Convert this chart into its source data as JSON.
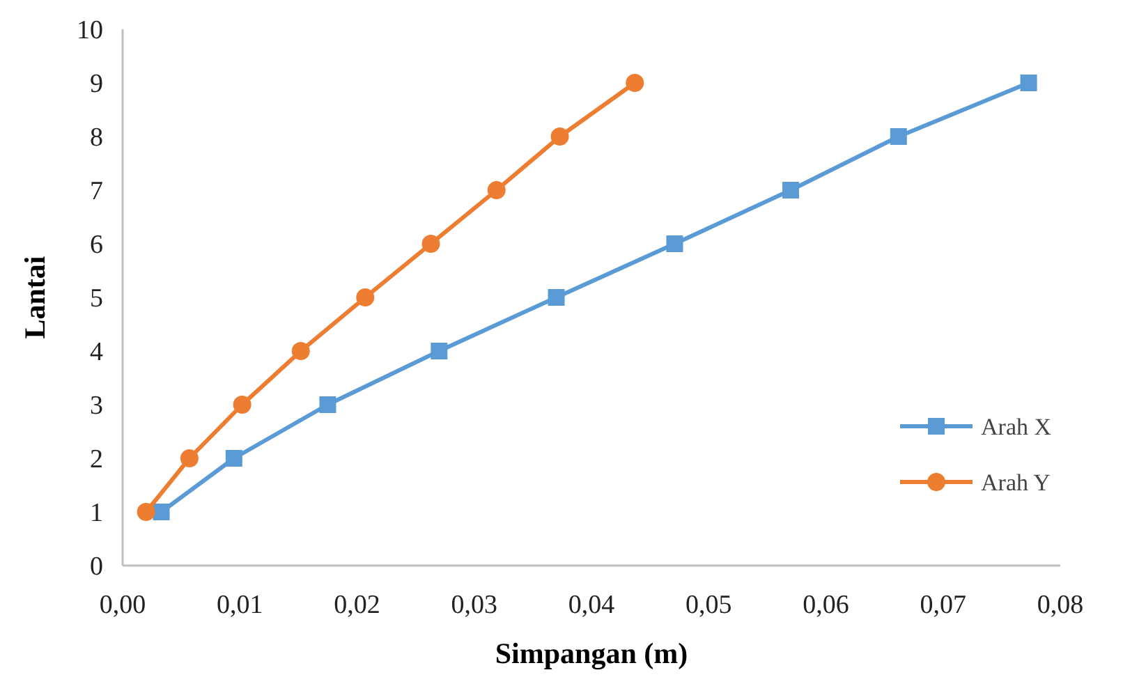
{
  "chart_data": {
    "type": "line",
    "xlabel": "Simpangan (m)",
    "ylabel": "Lantai",
    "xlim": [
      0,
      0.08
    ],
    "xticks": [
      {
        "value": 0,
        "label": "0,00"
      },
      {
        "value": 0.01,
        "label": "0,01"
      },
      {
        "value": 0.02,
        "label": "0,02"
      },
      {
        "value": 0.03,
        "label": "0,03"
      },
      {
        "value": 0.04,
        "label": "0,04"
      },
      {
        "value": 0.05,
        "label": "0,05"
      },
      {
        "value": 0.06,
        "label": "0,06"
      },
      {
        "value": 0.07,
        "label": "0,07"
      },
      {
        "value": 0.08,
        "label": "0,08"
      }
    ],
    "ylim": [
      0,
      10
    ],
    "yticks": [
      0,
      1,
      2,
      3,
      4,
      5,
      6,
      7,
      8,
      9,
      10
    ],
    "grid": false,
    "legend": "bottom right",
    "series": [
      {
        "name": "Arah X",
        "color": "#5b9bd5",
        "marker": "square",
        "x": [
          0.0033,
          0.0095,
          0.0175,
          0.027,
          0.037,
          0.0471,
          0.057,
          0.0662,
          0.0773
        ],
        "values": [
          1,
          2,
          3,
          4,
          5,
          6,
          7,
          8,
          9
        ]
      },
      {
        "name": "Arah Y",
        "color": "#ed7d31",
        "marker": "circle",
        "x": [
          0.002,
          0.0057,
          0.0102,
          0.0152,
          0.0207,
          0.0263,
          0.0319,
          0.0373,
          0.0437
        ],
        "values": [
          1,
          2,
          3,
          4,
          5,
          6,
          7,
          8,
          9
        ]
      }
    ]
  }
}
